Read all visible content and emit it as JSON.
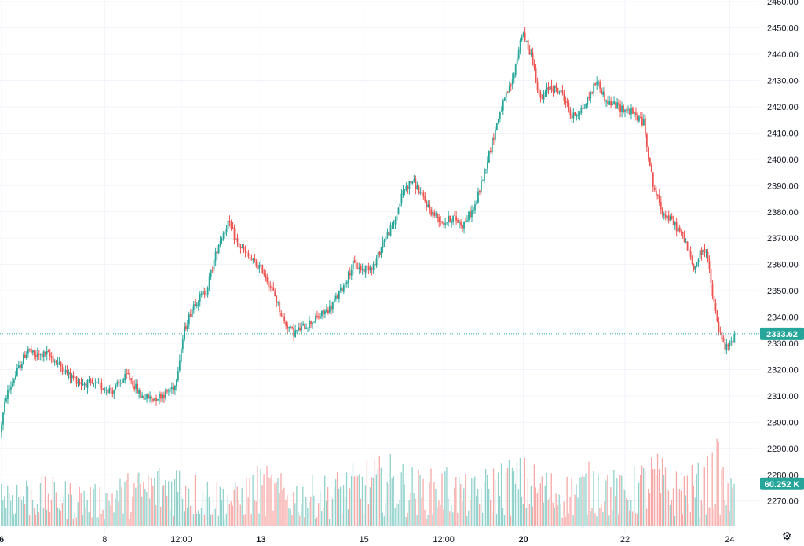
{
  "chart_data": {
    "type": "candlestick",
    "ylim": [
      2262,
      2462
    ],
    "y_ticks": [
      2270,
      2280,
      2290,
      2300,
      2310,
      2320,
      2330,
      2340,
      2350,
      2360,
      2370,
      2380,
      2390,
      2400,
      2410,
      2420,
      2430,
      2440,
      2450,
      2460
    ],
    "y_tick_labels": [
      "2270.00",
      "2280.00",
      "2290.00",
      "2300.00",
      "2310.00",
      "2320.00",
      "2330.00",
      "2340.00",
      "2350.00",
      "2360.00",
      "2370.00",
      "2380.00",
      "2390.00",
      "2400.00",
      "2410.00",
      "2420.00",
      "2430.00",
      "2440.00",
      "2450.00",
      "2460.00"
    ],
    "x_tick_labels": [
      {
        "label": "6",
        "bold": true,
        "i": 0
      },
      {
        "label": "8",
        "bold": false,
        "i": 66
      },
      {
        "label": "12:00",
        "bold": false,
        "i": 115
      },
      {
        "label": "13",
        "bold": true,
        "i": 166
      },
      {
        "label": "15",
        "bold": false,
        "i": 232
      },
      {
        "label": "12:00",
        "bold": false,
        "i": 283
      },
      {
        "label": "20",
        "bold": true,
        "i": 334
      },
      {
        "label": "22",
        "bold": false,
        "i": 399
      },
      {
        "label": "24",
        "bold": false,
        "i": 466
      }
    ],
    "path_points": [
      [
        0,
        2296
      ],
      [
        4,
        2310
      ],
      [
        10,
        2318
      ],
      [
        18,
        2328
      ],
      [
        22,
        2325
      ],
      [
        30,
        2326
      ],
      [
        36,
        2323
      ],
      [
        44,
        2318
      ],
      [
        52,
        2315
      ],
      [
        62,
        2314
      ],
      [
        72,
        2312
      ],
      [
        82,
        2318
      ],
      [
        90,
        2310
      ],
      [
        98,
        2309
      ],
      [
        106,
        2311
      ],
      [
        112,
        2314
      ],
      [
        118,
        2335
      ],
      [
        124,
        2345
      ],
      [
        132,
        2350
      ],
      [
        140,
        2368
      ],
      [
        146,
        2376
      ],
      [
        152,
        2368
      ],
      [
        160,
        2362
      ],
      [
        168,
        2358
      ],
      [
        176,
        2348
      ],
      [
        182,
        2338
      ],
      [
        188,
        2334
      ],
      [
        196,
        2337
      ],
      [
        204,
        2340
      ],
      [
        212,
        2344
      ],
      [
        220,
        2352
      ],
      [
        226,
        2360
      ],
      [
        232,
        2358
      ],
      [
        240,
        2360
      ],
      [
        246,
        2370
      ],
      [
        252,
        2375
      ],
      [
        258,
        2388
      ],
      [
        264,
        2392
      ],
      [
        270,
        2386
      ],
      [
        276,
        2380
      ],
      [
        284,
        2376
      ],
      [
        290,
        2378
      ],
      [
        296,
        2375
      ],
      [
        304,
        2382
      ],
      [
        312,
        2400
      ],
      [
        320,
        2418
      ],
      [
        328,
        2430
      ],
      [
        334,
        2448
      ],
      [
        340,
        2440
      ],
      [
        346,
        2422
      ],
      [
        352,
        2428
      ],
      [
        360,
        2425
      ],
      [
        366,
        2416
      ],
      [
        374,
        2420
      ],
      [
        382,
        2430
      ],
      [
        388,
        2422
      ],
      [
        396,
        2420
      ],
      [
        404,
        2418
      ],
      [
        412,
        2414
      ],
      [
        418,
        2390
      ],
      [
        424,
        2380
      ],
      [
        432,
        2375
      ],
      [
        438,
        2370
      ],
      [
        444,
        2358
      ],
      [
        448,
        2364
      ],
      [
        452,
        2366
      ],
      [
        456,
        2348
      ],
      [
        460,
        2335
      ],
      [
        464,
        2328
      ],
      [
        468,
        2330
      ],
      [
        470,
        2334
      ]
    ],
    "volume_axis_max": 180000,
    "volume_profile": [
      [
        0,
        72
      ],
      [
        30,
        65
      ],
      [
        60,
        55
      ],
      [
        90,
        78
      ],
      [
        115,
        92
      ],
      [
        125,
        70
      ],
      [
        150,
        58
      ],
      [
        166,
        84
      ],
      [
        185,
        62
      ],
      [
        210,
        70
      ],
      [
        232,
        88
      ],
      [
        250,
        95
      ],
      [
        270,
        72
      ],
      [
        285,
        82
      ],
      [
        300,
        64
      ],
      [
        320,
        90
      ],
      [
        334,
        92
      ],
      [
        345,
        80
      ],
      [
        360,
        68
      ],
      [
        382,
        90
      ],
      [
        398,
        66
      ],
      [
        418,
        102
      ],
      [
        430,
        74
      ],
      [
        450,
        86
      ],
      [
        458,
        116
      ],
      [
        466,
        60
      ],
      [
        470,
        74
      ]
    ],
    "last_price_label": "2333.62",
    "last_price": 2333.62,
    "last_volume_label": "60.252 K",
    "last_volume": 60252,
    "colors": {
      "up": "#26a69a",
      "down": "#ef5350",
      "vol_up": "#92d2cc",
      "vol_down": "#f7a9a7",
      "grid": "#f0f3fa",
      "axis_text": "#131722",
      "badge": "#26a69a"
    }
  },
  "settings_icon": "gear-icon"
}
